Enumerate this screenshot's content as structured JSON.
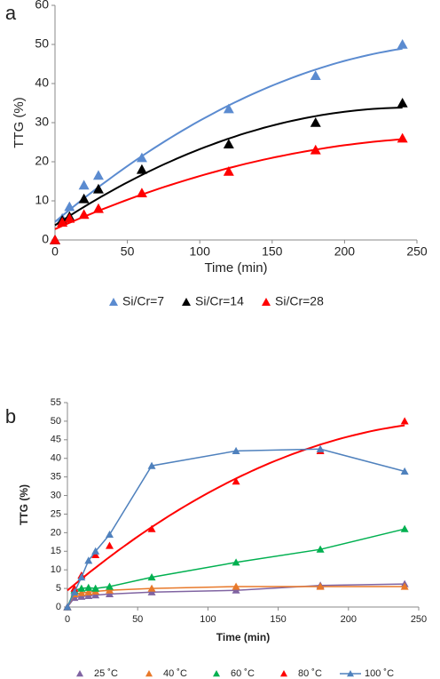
{
  "chart_data": [
    {
      "type": "scatter",
      "panel": "a",
      "ylabel": "TTG (%)",
      "xlabel": "Time (min)",
      "x": [
        0,
        5,
        10,
        20,
        30,
        60,
        120,
        180,
        240
      ],
      "xlim": [
        0,
        250
      ],
      "xticks": [
        0,
        50,
        100,
        150,
        200,
        250
      ],
      "ylim": [
        0,
        60
      ],
      "yticks": [
        0,
        10,
        20,
        30,
        40,
        50,
        60
      ],
      "series": [
        {
          "name": "Si/Cr=7",
          "color": "#5b8bd0",
          "style": "trend",
          "values": [
            0,
            5.5,
            8.5,
            14,
            16.5,
            21,
            33.5,
            42,
            50
          ]
        },
        {
          "name": "Si/Cr=14",
          "color": "#000000",
          "style": "trend",
          "values": [
            0,
            5,
            6,
            10.5,
            13,
            18,
            24.5,
            30,
            35
          ]
        },
        {
          "name": "Si/Cr=28",
          "color": "#ff0000",
          "style": "trend",
          "values": [
            0,
            4.5,
            5.5,
            6.5,
            8,
            12,
            17.5,
            23,
            26
          ]
        }
      ]
    },
    {
      "type": "scatter",
      "panel": "b",
      "ylabel": "TTG (%)",
      "xlabel": "Time (min)",
      "x": [
        0,
        5,
        10,
        15,
        20,
        30,
        60,
        120,
        180,
        240
      ],
      "xlim": [
        0,
        250
      ],
      "xticks": [
        0,
        50,
        100,
        150,
        200,
        250
      ],
      "ylim": [
        0,
        55
      ],
      "yticks": [
        0,
        5,
        10,
        15,
        20,
        25,
        30,
        35,
        40,
        45,
        50,
        55
      ],
      "series": [
        {
          "name": "25 ˚C",
          "color": "#8064a2",
          "style": "line",
          "values": [
            0,
            2.5,
            2.8,
            3,
            3.2,
            3.5,
            4,
            4.5,
            5.8,
            6.2
          ]
        },
        {
          "name": "40 ˚C",
          "color": "#e8792a",
          "style": "line",
          "values": [
            0,
            3.5,
            3.8,
            4,
            4.2,
            4.5,
            5,
            5.5,
            5.5,
            5.5
          ]
        },
        {
          "name": "60 ˚C",
          "color": "#00b050",
          "style": "line",
          "values": [
            0,
            4.5,
            5,
            5.2,
            5,
            5.5,
            8,
            12,
            15.5,
            21
          ]
        },
        {
          "name": "80 ˚C",
          "color": "#ff0000",
          "style": "trend",
          "values": [
            0,
            5,
            8.5,
            null,
            14,
            16.5,
            21,
            33.8,
            42,
            50
          ]
        },
        {
          "name": "100 ˚C",
          "color": "#4f81bd",
          "style": "line",
          "values": [
            0,
            4,
            8,
            12.5,
            15,
            19.5,
            38,
            42,
            42.5,
            36.5
          ]
        }
      ]
    }
  ]
}
